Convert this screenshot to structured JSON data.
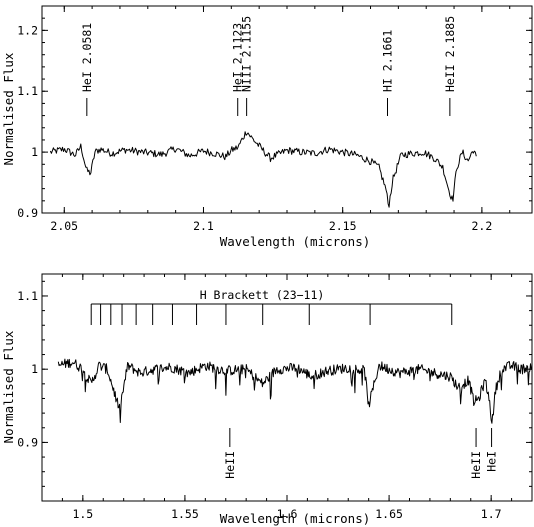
{
  "chart_data": [
    {
      "type": "line",
      "xlabel": "Wavelength (microns)",
      "ylabel": "Normalised Flux",
      "xlim": [
        2.042,
        2.218
      ],
      "ylim": [
        0.9,
        1.24
      ],
      "xticks": [
        2.05,
        2.1,
        2.15,
        2.2
      ],
      "xtick_labels": [
        "2.05",
        "2.1",
        "2.15",
        "2.2"
      ],
      "yticks": [
        0.9,
        1.0,
        1.1,
        1.2
      ],
      "ytick_labels": [
        "0.9",
        "1",
        "1.1",
        "1.2"
      ],
      "grid": false,
      "series": [
        {
          "x": [
            2.045,
            2.05,
            2.054,
            2.056,
            2.058,
            2.0595,
            2.061,
            2.063,
            2.067,
            2.072,
            2.078,
            2.085,
            2.09,
            2.095,
            2.1,
            2.104,
            2.108,
            2.11,
            2.1125,
            2.114,
            2.1155,
            2.117,
            2.12,
            2.124,
            2.13,
            2.135,
            2.14,
            2.145,
            2.15,
            2.155,
            2.16,
            2.163,
            2.1655,
            2.1665,
            2.168,
            2.171,
            2.175,
            2.179,
            2.183,
            2.186,
            2.188,
            2.1895,
            2.191,
            2.193,
            2.195,
            2.197,
            2.198
          ],
          "y": [
            1.0,
            1.005,
            0.995,
            1.01,
            0.97,
            0.965,
            1.0,
            1.005,
            0.998,
            1.004,
            1.0,
            0.996,
            1.006,
            0.994,
            1.002,
            0.998,
            0.992,
            1.003,
            1.008,
            1.022,
            1.035,
            1.025,
            1.01,
            0.99,
            1.003,
            1.0,
            0.998,
            1.005,
            1.0,
            0.995,
            0.985,
            0.975,
            0.94,
            0.91,
            0.955,
            0.995,
            0.998,
            1.0,
            0.99,
            0.975,
            0.94,
            0.92,
            0.975,
            1.0,
            0.985,
            1.005,
            0.99
          ]
        }
      ],
      "annotations": [
        {
          "label": "HeI 2.0581",
          "x": 2.0581
        },
        {
          "label": "HeI 2.1123",
          "x": 2.1123
        },
        {
          "label": "NIII 2.1155",
          "x": 2.1155
        },
        {
          "label": "HI 2.1661",
          "x": 2.1661
        },
        {
          "label": "HeII 2.1885",
          "x": 2.1885
        }
      ]
    },
    {
      "type": "line",
      "xlabel": "Wavelength (microns)",
      "ylabel": "Normalised Flux",
      "xlim": [
        1.48,
        1.72
      ],
      "ylim": [
        0.82,
        1.13
      ],
      "xticks": [
        1.5,
        1.55,
        1.6,
        1.65,
        1.7
      ],
      "xtick_labels": [
        "1.5",
        "1.55",
        "1.6",
        "1.65",
        "1.7"
      ],
      "yticks": [
        0.9,
        1.0,
        1.1
      ],
      "ytick_labels": [
        "0.9",
        "1",
        "1.1"
      ],
      "grid": false,
      "series": [
        {
          "x": [
            1.488,
            1.495,
            1.5,
            1.504,
            1.508,
            1.512,
            1.518,
            1.522,
            1.528,
            1.535,
            1.543,
            1.552,
            1.56,
            1.57,
            1.58,
            1.588,
            1.595,
            1.605,
            1.612,
            1.62,
            1.63,
            1.638,
            1.64,
            1.645,
            1.655,
            1.665,
            1.672,
            1.68,
            1.684,
            1.689,
            1.6915,
            1.694,
            1.697,
            1.699,
            1.7005,
            1.702,
            1.705,
            1.71,
            1.715,
            1.72
          ],
          "y": [
            1.005,
            1.01,
            1.0,
            0.98,
            1.005,
            1.0,
            0.945,
            1.005,
            0.995,
            1.0,
            1.003,
            0.995,
            1.005,
            0.998,
            1.0,
            0.98,
            1.0,
            1.002,
            0.99,
            0.998,
            1.002,
            0.998,
            0.95,
            1.005,
            0.995,
            1.0,
            0.995,
            0.99,
            0.975,
            0.985,
            0.955,
            0.96,
            0.985,
            0.96,
            0.925,
            0.97,
            1.0,
            1.005,
            1.0,
            1.005
          ]
        }
      ],
      "bracket": {
        "label": "H Brackett (23−11)",
        "lines": [
          1.5041,
          1.5087,
          1.5137,
          1.5192,
          1.5261,
          1.5342,
          1.5439,
          1.5557,
          1.5701,
          1.5881,
          1.6109,
          1.6407,
          1.6807
        ]
      },
      "annotations": [
        {
          "label": "HeII",
          "x": 1.572
        },
        {
          "label": "HeII",
          "x": 1.6926
        },
        {
          "label": "HeI",
          "x": 1.7002
        }
      ]
    }
  ]
}
